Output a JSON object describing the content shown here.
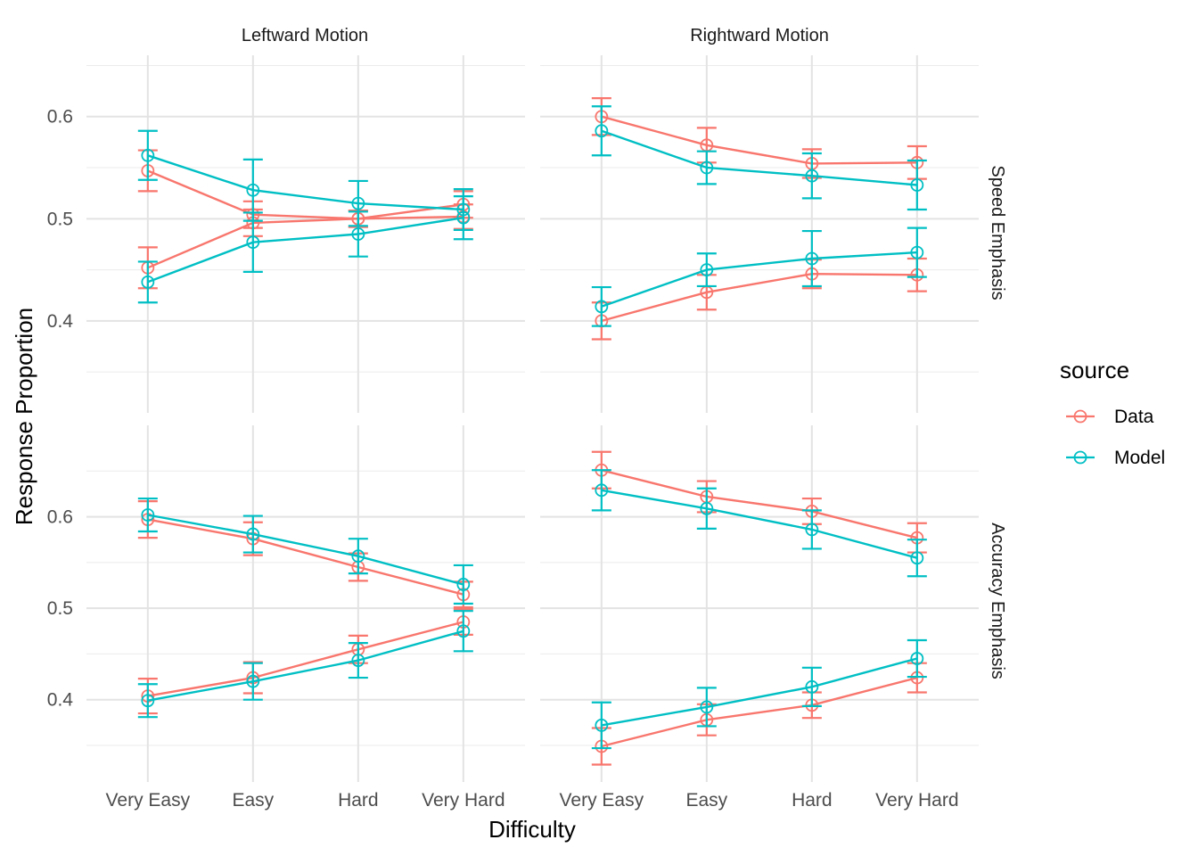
{
  "chart_data": {
    "type": "line",
    "title": "",
    "xlabel": "Difficulty",
    "ylabel": "Response Proportion",
    "categories": [
      "Very Easy",
      "Easy",
      "Hard",
      "Very Hard"
    ],
    "column_facets": [
      "Leftward Motion",
      "Rightward Motion"
    ],
    "row_facets": [
      "Speed Emphasis",
      "Accuracy Emphasis"
    ],
    "yticks": [
      "0.4",
      "0.5",
      "0.6"
    ],
    "ylim_rows": [
      [
        0.31,
        0.66
      ],
      [
        0.31,
        0.7
      ]
    ],
    "legend": {
      "title": "source",
      "position": "right",
      "entries": [
        {
          "name": "Data",
          "color": "#F8766D"
        },
        {
          "name": "Model",
          "color": "#00BFC4"
        }
      ]
    },
    "grid": true,
    "panels": [
      {
        "column": "Leftward Motion",
        "row": "Speed Emphasis",
        "lines": [
          {
            "source": "Data",
            "values": [
              0.547,
              0.504,
              0.5,
              0.502
            ],
            "errors": [
              0.02,
              0.013,
              0.008,
              0.012
            ]
          },
          {
            "source": "Data",
            "values": [
              0.452,
              0.496,
              0.5,
              0.514
            ],
            "errors": [
              0.02,
              0.013,
              0.008,
              0.013
            ]
          },
          {
            "source": "Model",
            "values": [
              0.562,
              0.528,
              0.515,
              0.509
            ],
            "errors": [
              0.024,
              0.03,
              0.022,
              0.02
            ]
          },
          {
            "source": "Model",
            "values": [
              0.438,
              0.477,
              0.485,
              0.501
            ],
            "errors": [
              0.02,
              0.029,
              0.022,
              0.021
            ]
          }
        ]
      },
      {
        "column": "Rightward Motion",
        "row": "Speed Emphasis",
        "lines": [
          {
            "source": "Data",
            "values": [
              0.6,
              0.572,
              0.554,
              0.555
            ],
            "errors": [
              0.018,
              0.017,
              0.014,
              0.016
            ]
          },
          {
            "source": "Data",
            "values": [
              0.4,
              0.428,
              0.446,
              0.445
            ],
            "errors": [
              0.018,
              0.017,
              0.014,
              0.016
            ]
          },
          {
            "source": "Model",
            "values": [
              0.586,
              0.55,
              0.542,
              0.533
            ],
            "errors": [
              0.024,
              0.016,
              0.022,
              0.024
            ]
          },
          {
            "source": "Model",
            "values": [
              0.414,
              0.45,
              0.461,
              0.467
            ],
            "errors": [
              0.019,
              0.016,
              0.027,
              0.024
            ]
          }
        ]
      },
      {
        "column": "Leftward Motion",
        "row": "Accuracy Emphasis",
        "lines": [
          {
            "source": "Data",
            "values": [
              0.597,
              0.576,
              0.545,
              0.515
            ],
            "errors": [
              0.02,
              0.018,
              0.015,
              0.014
            ]
          },
          {
            "source": "Data",
            "values": [
              0.404,
              0.424,
              0.455,
              0.485
            ],
            "errors": [
              0.019,
              0.017,
              0.015,
              0.014
            ]
          },
          {
            "source": "Model",
            "values": [
              0.602,
              0.581,
              0.557,
              0.526
            ],
            "errors": [
              0.018,
              0.02,
              0.019,
              0.021
            ]
          },
          {
            "source": "Model",
            "values": [
              0.399,
              0.42,
              0.443,
              0.475
            ],
            "errors": [
              0.018,
              0.02,
              0.019,
              0.022
            ]
          }
        ]
      },
      {
        "column": "Rightward Motion",
        "row": "Accuracy Emphasis",
        "lines": [
          {
            "source": "Data",
            "values": [
              0.651,
              0.622,
              0.606,
              0.577
            ],
            "errors": [
              0.02,
              0.017,
              0.014,
              0.016
            ]
          },
          {
            "source": "Data",
            "values": [
              0.349,
              0.378,
              0.394,
              0.424
            ],
            "errors": [
              0.02,
              0.017,
              0.014,
              0.016
            ]
          },
          {
            "source": "Model",
            "values": [
              0.629,
              0.609,
              0.586,
              0.555
            ],
            "errors": [
              0.022,
              0.022,
              0.021,
              0.02
            ]
          },
          {
            "source": "Model",
            "values": [
              0.372,
              0.392,
              0.414,
              0.445
            ],
            "errors": [
              0.025,
              0.021,
              0.021,
              0.02
            ]
          }
        ]
      }
    ]
  }
}
